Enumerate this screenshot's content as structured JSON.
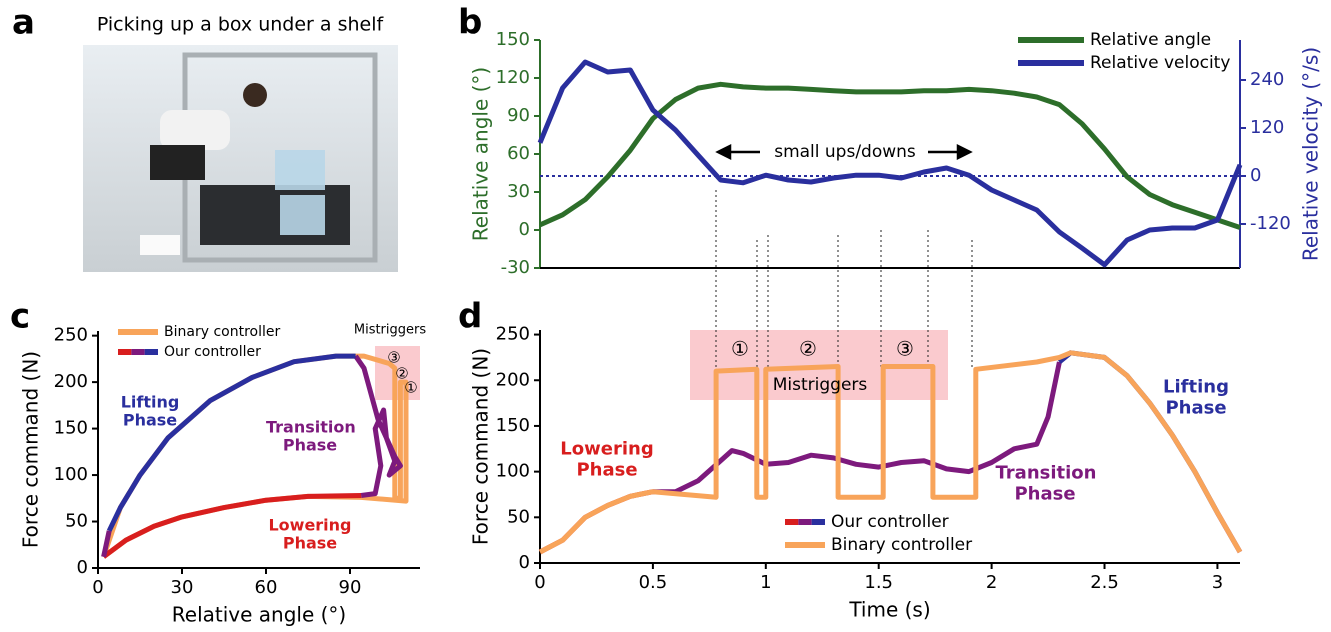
{
  "panel_a": {
    "label": "a",
    "title": "Picking up a box under a shelf"
  },
  "chart_data": [
    {
      "label": "b",
      "type": "line",
      "ylabel": "Relative angle (°)",
      "y2label": "Relative velocity (°/s)",
      "y_axis_color": "#2d6e2a",
      "y2_axis_color": "#2a2f9e",
      "x": [
        0,
        0.1,
        0.2,
        0.3,
        0.4,
        0.5,
        0.6,
        0.7,
        0.8,
        0.9,
        1.0,
        1.1,
        1.2,
        1.3,
        1.4,
        1.5,
        1.6,
        1.7,
        1.8,
        1.9,
        2.0,
        2.1,
        2.2,
        2.3,
        2.4,
        2.5,
        2.6,
        2.7,
        2.8,
        2.9,
        3.0,
        3.1
      ],
      "xlim": [
        0,
        3.1
      ],
      "ylim": [
        -30,
        150
      ],
      "yticks": [
        -30,
        0,
        30,
        60,
        90,
        120,
        150
      ],
      "y2lim": [
        -230,
        340
      ],
      "y2ticks": [
        -120,
        0,
        120,
        240
      ],
      "y2_reference_line": 0,
      "annotation": "small ups/downs",
      "series": [
        {
          "name": "Relative angle",
          "color": "#2d6e2a",
          "values": [
            4,
            12,
            24,
            42,
            63,
            88,
            103,
            112,
            115,
            113,
            112,
            112,
            111,
            110,
            109,
            109,
            109,
            110,
            110,
            111,
            110,
            108,
            105,
            99,
            84,
            64,
            42,
            28,
            20,
            14,
            8,
            2
          ]
        },
        {
          "name": "Relative velocity",
          "color": "#2a2f9e",
          "axis": "y2",
          "values": [
            83,
            220,
            285,
            260,
            265,
            165,
            115,
            52,
            -10,
            -17,
            2,
            -10,
            -15,
            -5,
            2,
            2,
            -5,
            10,
            20,
            2,
            -35,
            -60,
            -85,
            -140,
            -180,
            -222,
            -160,
            -135,
            -130,
            -130,
            -110,
            28
          ]
        }
      ]
    },
    {
      "label": "c",
      "type": "line",
      "xlabel": "Relative angle (°)",
      "ylabel": "Force command (N)",
      "xlim": [
        0,
        115
      ],
      "ylim": [
        0,
        255
      ],
      "xticks": [
        0,
        30,
        60,
        90
      ],
      "yticks": [
        0,
        50,
        100,
        150,
        200,
        250
      ],
      "mistrigger_label": "Mistriggers",
      "mistrigger_marks": [
        "①",
        "②",
        "③"
      ],
      "phase_labels": [
        {
          "text": "Lowering Phase",
          "color": "#d81e1e"
        },
        {
          "text": "Transition Phase",
          "color": "#7d1a7d"
        },
        {
          "text": "Lifting Phase",
          "color": "#2a2f9e"
        }
      ],
      "series": [
        {
          "name": "Binary controller",
          "color": "#f8a45a",
          "x": [
            2,
            10,
            20,
            30,
            45,
            60,
            75,
            94,
            110,
            110,
            108,
            108,
            106,
            106,
            104,
            95,
            85,
            70,
            55,
            40,
            25,
            15,
            8,
            2
          ],
          "values": [
            12,
            30,
            45,
            55,
            65,
            73,
            77,
            76,
            72,
            200,
            200,
            75,
            75,
            215,
            220,
            228,
            228,
            222,
            205,
            180,
            140,
            100,
            65,
            12
          ]
        },
        {
          "name": "Our controller",
          "segments": [
            {
              "color": "#d81e1e",
              "x": [
                2,
                10,
                20,
                30,
                45,
                60,
                75,
                94
              ],
              "values": [
                12,
                30,
                45,
                55,
                65,
                73,
                77,
                78
              ]
            },
            {
              "color": "#7d1a7d",
              "x": [
                94,
                99,
                101,
                99,
                102,
                103,
                106,
                104,
                108,
                106,
                100,
                95,
                92
              ],
              "values": [
                78,
                80,
                110,
                150,
                170,
                140,
                115,
                100,
                110,
                120,
                160,
                215,
                228
              ]
            },
            {
              "color": "#2a2f9e",
              "x": [
                92,
                85,
                70,
                55,
                40,
                25,
                15,
                8,
                4
              ],
              "values": [
                228,
                228,
                222,
                205,
                180,
                140,
                100,
                65,
                40
              ]
            },
            {
              "color": "#7d1a7d",
              "x": [
                4,
                2
              ],
              "values": [
                40,
                12
              ]
            }
          ]
        }
      ]
    },
    {
      "label": "d",
      "type": "line",
      "xlabel": "Time (s)",
      "ylabel": "Force command (N)",
      "xlim": [
        0,
        3.1
      ],
      "ylim": [
        0,
        255
      ],
      "xticks": [
        0,
        0.5,
        1,
        1.5,
        2,
        2.5,
        3
      ],
      "yticks": [
        0,
        50,
        100,
        150,
        200,
        250
      ],
      "mistrigger_label": "Mistriggers",
      "mistrigger_marks": [
        "①",
        "②",
        "③"
      ],
      "phase_labels": [
        {
          "text": "Lowering Phase",
          "color": "#d81e1e"
        },
        {
          "text": "Transition Phase",
          "color": "#7d1a7d"
        },
        {
          "text": "Lifting Phase",
          "color": "#2a2f9e"
        }
      ],
      "series": [
        {
          "name": "Our controller",
          "segments": [
            {
              "color": "#d81e1e",
              "x": [
                0,
                0.1,
                0.2,
                0.3,
                0.4,
                0.5
              ],
              "values": [
                12,
                25,
                50,
                63,
                73,
                78
              ]
            },
            {
              "color": "#7d1a7d",
              "x": [
                0.5,
                0.6,
                0.7,
                0.8,
                0.85,
                0.9,
                1.0,
                1.1,
                1.2,
                1.3,
                1.4,
                1.5,
                1.6,
                1.7,
                1.8,
                1.9,
                2.0,
                2.1,
                2.2,
                2.25,
                2.3
              ],
              "values": [
                78,
                78,
                90,
                112,
                123,
                120,
                108,
                110,
                118,
                115,
                108,
                105,
                110,
                112,
                103,
                100,
                110,
                125,
                130,
                160,
                220
              ]
            },
            {
              "color": "#2a2f9e",
              "x": [
                2.3,
                2.35,
                2.5,
                2.6,
                2.7,
                2.8,
                2.9,
                3.0
              ],
              "values": [
                220,
                230,
                225,
                205,
                175,
                140,
                100,
                55
              ]
            },
            {
              "color": "#7d1a7d",
              "x": [
                3.0,
                3.1
              ],
              "values": [
                55,
                12
              ]
            }
          ]
        },
        {
          "name": "Binary controller",
          "color": "#f8a45a",
          "x": [
            0,
            0.1,
            0.2,
            0.3,
            0.4,
            0.5,
            0.78,
            0.78,
            0.96,
            0.96,
            1.0,
            1.0,
            1.32,
            1.32,
            1.52,
            1.52,
            1.74,
            1.74,
            1.93,
            1.93,
            2.2,
            2.3,
            2.35,
            2.5,
            2.6,
            2.7,
            2.8,
            2.9,
            3.0,
            3.1
          ],
          "values": [
            12,
            25,
            50,
            63,
            73,
            78,
            72,
            210,
            212,
            72,
            72,
            212,
            215,
            72,
            72,
            215,
            215,
            72,
            72,
            212,
            220,
            225,
            230,
            225,
            205,
            175,
            140,
            100,
            55,
            12
          ]
        }
      ]
    }
  ]
}
